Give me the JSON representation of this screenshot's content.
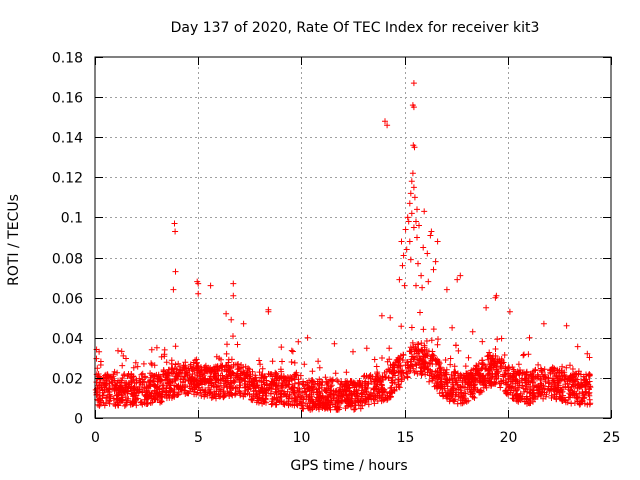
{
  "chart_data": {
    "type": "scatter",
    "title": "Day 137 of 2020, Rate Of TEC Index for receiver kit3",
    "xlabel": "GPS time / hours",
    "ylabel": "ROTI / TECUs",
    "xlim": [
      0,
      25
    ],
    "ylim": [
      0,
      0.18
    ],
    "xticks": [
      0,
      5,
      10,
      15,
      20,
      25
    ],
    "xtick_labels": [
      "0",
      "5",
      "10",
      "15",
      "20",
      "25"
    ],
    "yticks": [
      0,
      0.02,
      0.04,
      0.06,
      0.08,
      0.1,
      0.12,
      0.14,
      0.16,
      0.18
    ],
    "ytick_labels": [
      "0",
      "0.02",
      "0.04",
      "0.06",
      "0.08",
      "0.1",
      "0.12",
      "0.14",
      "0.16",
      "0.18"
    ],
    "grid": true,
    "marker": "+",
    "color": "#ff0000",
    "series": [
      {
        "name": "ROTI",
        "points": [
          [
            3.85,
            0.097
          ],
          [
            3.88,
            0.093
          ],
          [
            3.9,
            0.073
          ],
          [
            3.8,
            0.064
          ],
          [
            4.95,
            0.068
          ],
          [
            5.0,
            0.067
          ],
          [
            5.0,
            0.062
          ],
          [
            5.6,
            0.066
          ],
          [
            6.7,
            0.067
          ],
          [
            6.7,
            0.061
          ],
          [
            8.4,
            0.054
          ],
          [
            8.4,
            0.053
          ],
          [
            14.05,
            0.148
          ],
          [
            14.15,
            0.146
          ],
          [
            15.45,
            0.167
          ],
          [
            15.4,
            0.156
          ],
          [
            15.45,
            0.155
          ],
          [
            15.42,
            0.136
          ],
          [
            15.48,
            0.135
          ],
          [
            15.4,
            0.122
          ],
          [
            15.35,
            0.118
          ],
          [
            15.45,
            0.115
          ],
          [
            15.3,
            0.112
          ],
          [
            15.5,
            0.11
          ],
          [
            15.25,
            0.107
          ],
          [
            15.6,
            0.104
          ],
          [
            15.35,
            0.102
          ],
          [
            15.95,
            0.103
          ],
          [
            15.15,
            0.1
          ],
          [
            15.2,
            0.098
          ],
          [
            15.55,
            0.098
          ],
          [
            15.05,
            0.094
          ],
          [
            15.45,
            0.095
          ],
          [
            15.7,
            0.096
          ],
          [
            16.3,
            0.093
          ],
          [
            16.25,
            0.091
          ],
          [
            14.85,
            0.088
          ],
          [
            15.25,
            0.088
          ],
          [
            16.6,
            0.088
          ],
          [
            15.6,
            0.09
          ],
          [
            15.1,
            0.084
          ],
          [
            15.9,
            0.085
          ],
          [
            16.1,
            0.082
          ],
          [
            14.95,
            0.081
          ],
          [
            15.3,
            0.079
          ],
          [
            16.5,
            0.078
          ],
          [
            14.9,
            0.076
          ],
          [
            15.65,
            0.077
          ],
          [
            16.4,
            0.074
          ],
          [
            17.7,
            0.071
          ],
          [
            14.75,
            0.069
          ],
          [
            15.8,
            0.071
          ],
          [
            16.15,
            0.068
          ],
          [
            17.55,
            0.069
          ],
          [
            15.0,
            0.066
          ],
          [
            15.55,
            0.066
          ],
          [
            15.85,
            0.065
          ],
          [
            17.05,
            0.064
          ],
          [
            19.45,
            0.061
          ],
          [
            19.4,
            0.06
          ],
          [
            18.95,
            0.055
          ],
          [
            20.1,
            0.053
          ],
          [
            21.75,
            0.047
          ],
          [
            22.85,
            0.046
          ],
          [
            6.35,
            0.052
          ],
          [
            6.6,
            0.049
          ],
          [
            7.2,
            0.047
          ],
          [
            13.9,
            0.051
          ],
          [
            14.3,
            0.05
          ],
          [
            10.3,
            0.04
          ],
          [
            11.6,
            0.037
          ],
          [
            3.0,
            0.035
          ],
          [
            2.75,
            0.034
          ],
          [
            0.2,
            0.033
          ],
          [
            9.85,
            0.038
          ],
          [
            12.5,
            0.033
          ],
          [
            17.3,
            0.045
          ],
          [
            18.3,
            0.043
          ],
          [
            21.05,
            0.04
          ],
          [
            23.85,
            0.032
          ]
        ]
      }
    ]
  }
}
